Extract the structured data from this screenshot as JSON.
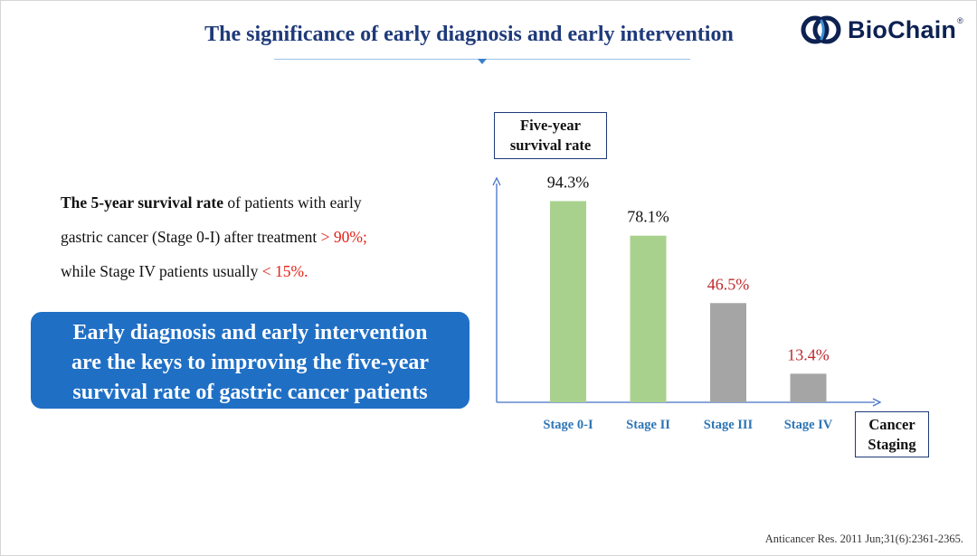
{
  "header": {
    "title": "The significance of early diagnosis and early intervention",
    "logo_text": "BioChain",
    "logo_mark": "®"
  },
  "description": {
    "bold_lead": "The 5-year survival rate",
    "line1_rest": " of patients with early",
    "line2": "gastric cancer (Stage 0-I) after treatment ",
    "line2_highlight": "> 90%;",
    "line3": "while Stage IV patients usually ",
    "line3_highlight": "< 15%."
  },
  "callout": {
    "line1": "Early diagnosis and early intervention",
    "line2": "are the keys to improving the five-year",
    "line3": "survival rate of gastric cancer patients"
  },
  "chart_data": {
    "type": "bar",
    "categories": [
      "Stage 0-I",
      "Stage II",
      "Stage III",
      "Stage IV"
    ],
    "values": [
      94.3,
      78.1,
      46.5,
      13.4
    ],
    "value_labels": [
      "94.3%",
      "78.1%",
      "46.5%",
      "13.4%"
    ],
    "bar_colors": [
      "#a9d18e",
      "#a9d18e",
      "#a5a5a5",
      "#a5a5a5"
    ],
    "label_colors": [
      "#111111",
      "#111111",
      "#c0282d",
      "#c0282d"
    ],
    "ylabel_line1": "Five-year",
    "ylabel_line2": "survival rate",
    "xlabel_line1": "Cancer",
    "xlabel_line2": "Staging",
    "ylim": [
      0,
      100
    ],
    "axis_color": "#4472c4",
    "category_label_color": "#2e75b6"
  },
  "footer": {
    "citation": "Anticancer Res. 2011 Jun;31(6):2361-2365."
  }
}
